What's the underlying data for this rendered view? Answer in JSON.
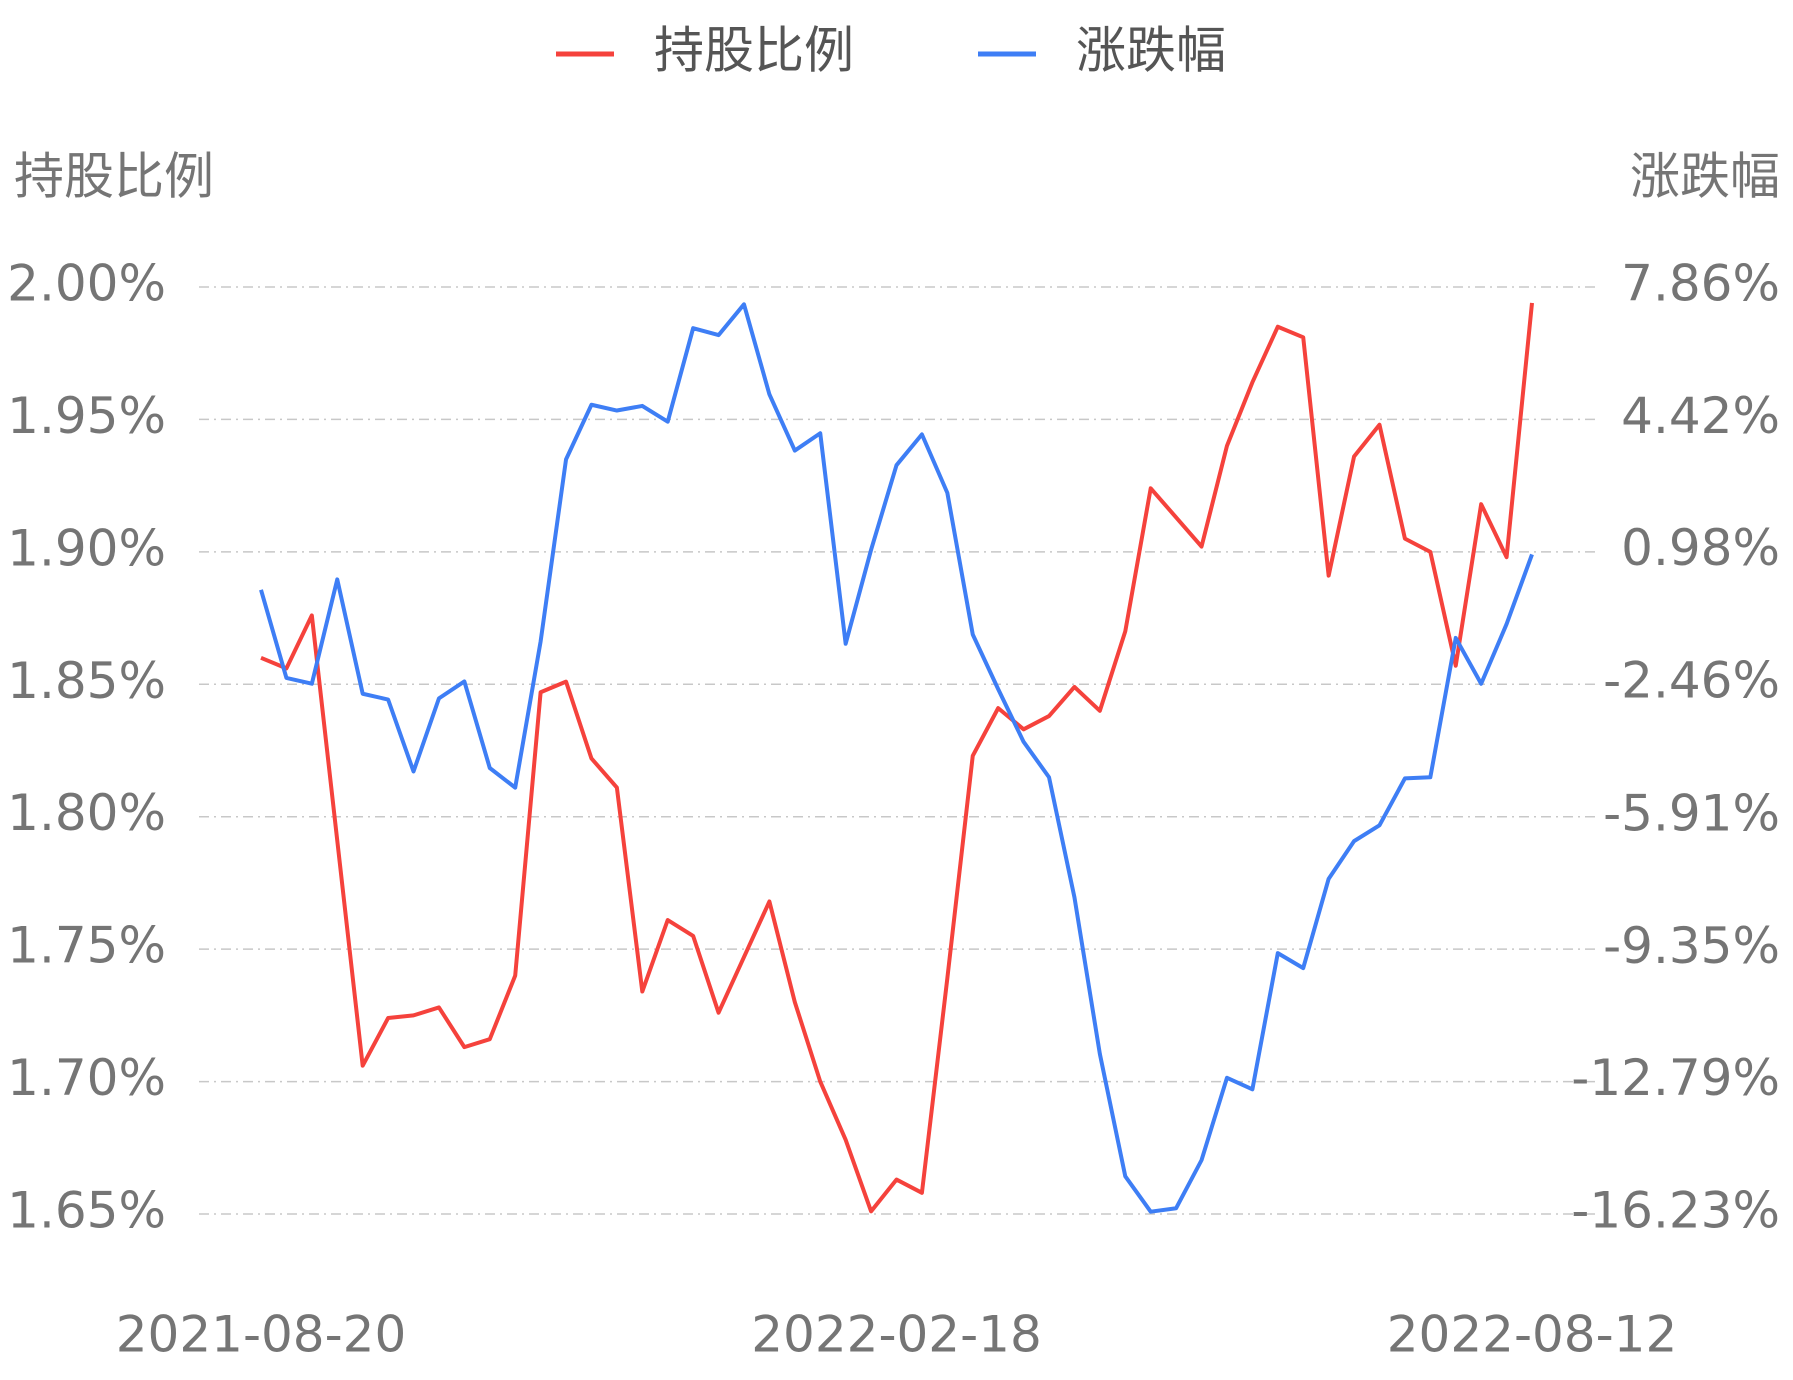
{
  "chart_data": {
    "type": "line",
    "y_title": "持股比例",
    "y2_title": "涨跌幅",
    "categories": [
      "2021-08-20",
      null,
      null,
      null,
      null,
      null,
      null,
      null,
      null,
      null,
      null,
      null,
      null,
      null,
      null,
      null,
      null,
      null,
      null,
      null,
      null,
      null,
      null,
      null,
      null,
      "2022-02-18",
      null,
      null,
      null,
      null,
      null,
      null,
      null,
      null,
      null,
      null,
      null,
      null,
      null,
      null,
      null,
      null,
      null,
      null,
      null,
      null,
      null,
      null,
      null,
      null,
      "2022-08-12"
    ],
    "series": [
      {
        "name": "持股比例",
        "color": "#f5423c",
        "axis": "y",
        "values": [
          1.86,
          1.856,
          1.876,
          1.791,
          1.706,
          1.724,
          1.725,
          1.728,
          1.713,
          1.716,
          1.74,
          1.847,
          1.851,
          1.822,
          1.811,
          1.734,
          1.761,
          1.755,
          1.726,
          1.747,
          1.768,
          1.73,
          1.7,
          1.678,
          1.651,
          1.663,
          1.658,
          1.739,
          1.823,
          1.841,
          1.833,
          1.838,
          1.849,
          1.84,
          1.87,
          1.924,
          1.913,
          1.902,
          1.94,
          1.964,
          1.985,
          1.981,
          1.891,
          1.936,
          1.948,
          1.905,
          1.9,
          1.857,
          1.918,
          1.898,
          1.994
        ]
      },
      {
        "name": "涨跌幅",
        "color": "#3e7ef5",
        "axis": "y2",
        "values": [
          -0.01,
          -2.3,
          -2.45,
          0.26,
          -2.71,
          -2.86,
          -4.73,
          -2.83,
          -2.39,
          -4.64,
          -5.15,
          -1.35,
          3.38,
          4.8,
          4.65,
          4.77,
          4.36,
          6.79,
          6.61,
          7.41,
          5.07,
          3.61,
          4.06,
          -1.41,
          1.03,
          3.23,
          4.03,
          2.51,
          -1.17,
          -2.59,
          -3.96,
          -4.88,
          -8.0,
          -12.07,
          -15.25,
          -16.17,
          -16.08,
          -14.83,
          -12.69,
          -12.99,
          -9.45,
          -9.84,
          -7.52,
          -6.54,
          -6.13,
          -4.91,
          -4.88,
          -1.26,
          -2.45,
          -0.9,
          0.91
        ]
      }
    ],
    "ylim": [
      1.65,
      2.0
    ],
    "yticks": [
      {
        "value": 1.65,
        "label": "1.65%"
      },
      {
        "value": 1.7,
        "label": "1.70%"
      },
      {
        "value": 1.75,
        "label": "1.75%"
      },
      {
        "value": 1.8,
        "label": "1.80%"
      },
      {
        "value": 1.85,
        "label": "1.85%"
      },
      {
        "value": 1.9,
        "label": "1.90%"
      },
      {
        "value": 1.95,
        "label": "1.95%"
      },
      {
        "value": 2.0,
        "label": "2.00%"
      }
    ],
    "y2lim": [
      -16.23,
      7.86
    ],
    "y2ticks": [
      {
        "value": -16.23,
        "label": "-16.23%"
      },
      {
        "value": -12.79,
        "label": "-12.79%"
      },
      {
        "value": -9.35,
        "label": "-9.35%"
      },
      {
        "value": -5.91,
        "label": "-5.91%"
      },
      {
        "value": -2.46,
        "label": "-2.46%"
      },
      {
        "value": 0.98,
        "label": "0.98%"
      },
      {
        "value": 4.42,
        "label": "4.42%"
      },
      {
        "value": 7.86,
        "label": "7.86%"
      }
    ],
    "grid": true,
    "legend": "top"
  }
}
